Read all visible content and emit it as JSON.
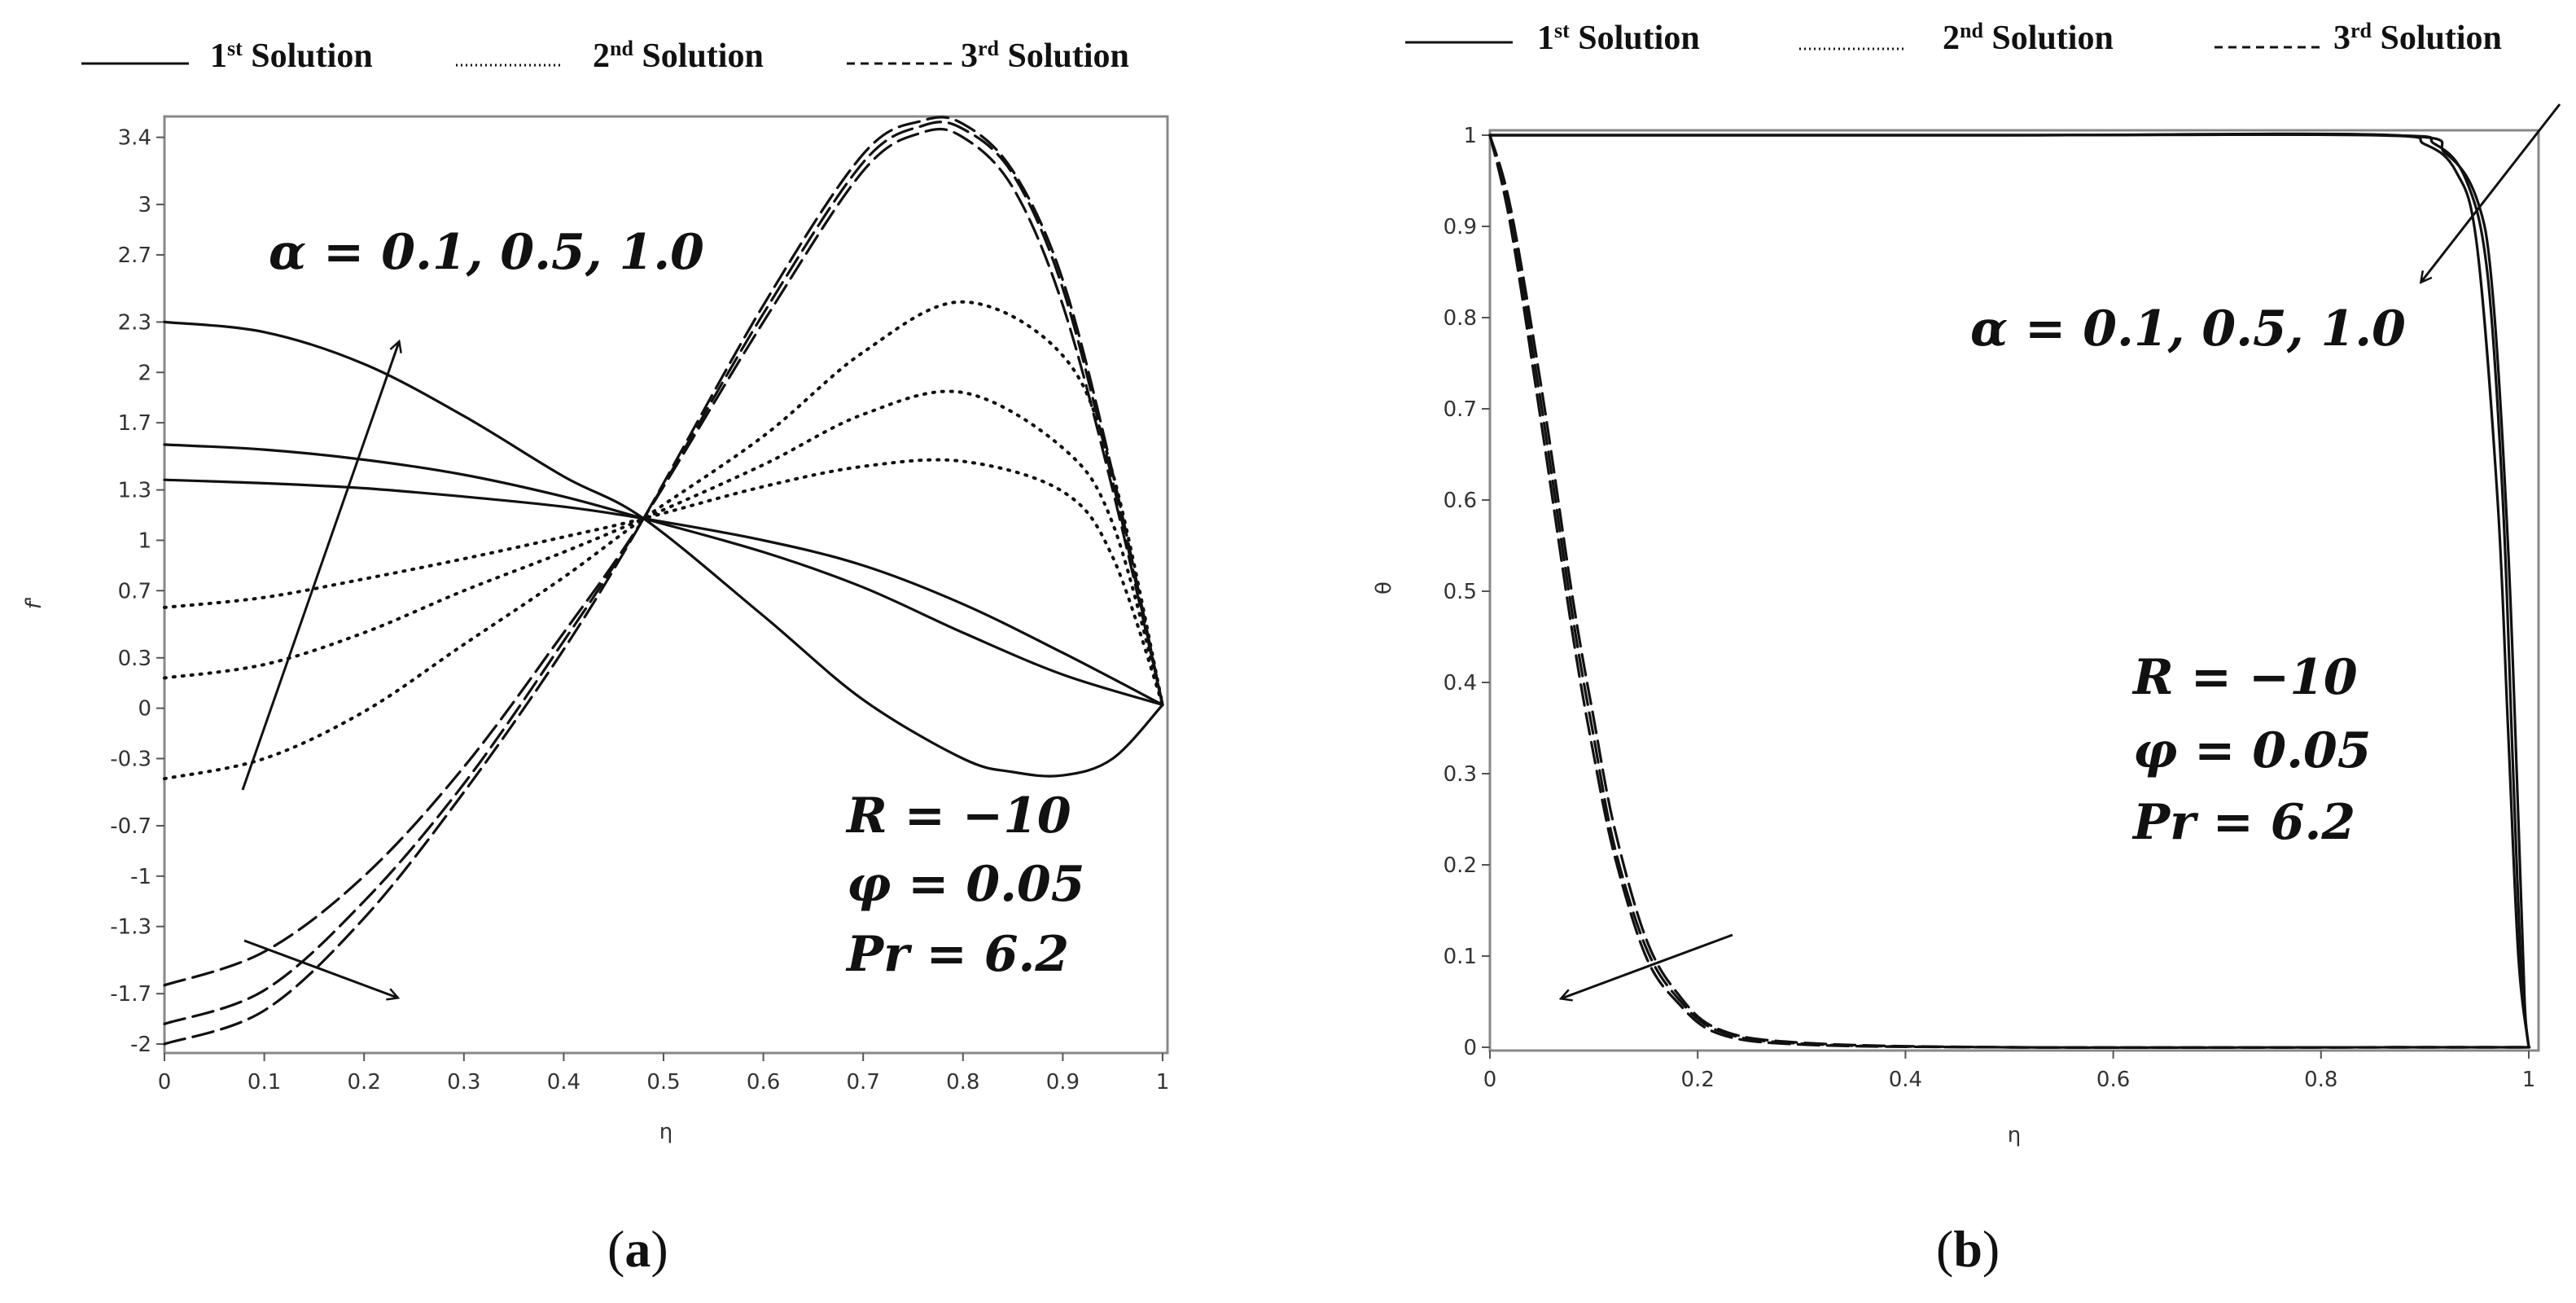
{
  "chart_data": [
    {
      "type": "line",
      "panel": "a",
      "caption_letter": "a",
      "caption_open": "(",
      "caption_close": ")",
      "xlabel": "η",
      "ylabel": "f'",
      "xlim": [
        0,
        1
      ],
      "ylim": [
        -2.0,
        3.5
      ],
      "x_ticks": [
        "0",
        "0.1",
        "0.2",
        "0.3",
        "0.4",
        "0.5",
        "0.6",
        "0.7",
        "0.8",
        "0.9",
        "1"
      ],
      "y_ticks": [
        {
          "v": 3.4,
          "label": "3.4"
        },
        {
          "v": 3.0,
          "label": "3"
        },
        {
          "v": 2.7,
          "label": "2.7"
        },
        {
          "v": 2.3,
          "label": "2.3"
        },
        {
          "v": 2.0,
          "label": "2"
        },
        {
          "v": 1.7,
          "label": "1.7"
        },
        {
          "v": 1.3,
          "label": "1.3"
        },
        {
          "v": 1.0,
          "label": "1"
        },
        {
          "v": 0.7,
          "label": "0.7"
        },
        {
          "v": 0.3,
          "label": "0.3"
        },
        {
          "v": 0.0,
          "label": "0"
        },
        {
          "v": -0.3,
          "label": "-0.3"
        },
        {
          "v": -0.7,
          "label": "-0.7"
        },
        {
          "v": -1.0,
          "label": "-1"
        },
        {
          "v": -1.3,
          "label": "-1.3"
        },
        {
          "v": -1.7,
          "label": "-1.7"
        },
        {
          "v": -2.0,
          "label": "-2"
        }
      ],
      "legend": [
        {
          "pre": "1",
          "sup": "st",
          "post": " Solution",
          "style": "solid"
        },
        {
          "pre": "2",
          "sup": "nd",
          "post": " Solution",
          "style": "dotted"
        },
        {
          "pre": "3",
          "sup": "rd",
          "post": " Solution",
          "style": "dashed"
        }
      ],
      "series": [
        {
          "name": "1st Solution, α = 0.1",
          "style": "solid",
          "x": [
            0,
            0.1,
            0.2,
            0.3,
            0.4,
            0.48,
            0.6,
            0.7,
            0.8,
            0.9,
            1.0
          ],
          "y": [
            1.36,
            1.34,
            1.31,
            1.26,
            1.2,
            1.13,
            1.0,
            0.85,
            0.62,
            0.33,
            0.02
          ]
        },
        {
          "name": "1st Solution, α = 0.5",
          "style": "solid",
          "x": [
            0,
            0.1,
            0.2,
            0.3,
            0.4,
            0.48,
            0.6,
            0.7,
            0.8,
            0.9,
            1.0
          ],
          "y": [
            1.57,
            1.54,
            1.48,
            1.39,
            1.26,
            1.13,
            0.93,
            0.72,
            0.45,
            0.2,
            0.02
          ]
        },
        {
          "name": "1st Solution, α = 1.0",
          "style": "solid",
          "x": [
            0,
            0.1,
            0.2,
            0.3,
            0.4,
            0.48,
            0.6,
            0.7,
            0.8,
            0.85,
            0.9,
            0.95,
            1.0
          ],
          "y": [
            2.3,
            2.24,
            2.05,
            1.74,
            1.38,
            1.13,
            0.55,
            0.05,
            -0.3,
            -0.38,
            -0.4,
            -0.3,
            0.02
          ]
        },
        {
          "name": "2nd Solution, α = 0.1",
          "style": "dotted",
          "x": [
            0,
            0.1,
            0.2,
            0.3,
            0.4,
            0.48,
            0.6,
            0.7,
            0.8,
            0.9,
            0.95,
            1.0
          ],
          "y": [
            0.6,
            0.66,
            0.77,
            0.89,
            1.02,
            1.13,
            1.32,
            1.44,
            1.47,
            1.29,
            0.9,
            0.02
          ]
        },
        {
          "name": "2nd Solution, α = 0.5",
          "style": "dotted",
          "x": [
            0,
            0.1,
            0.2,
            0.3,
            0.4,
            0.48,
            0.6,
            0.7,
            0.8,
            0.9,
            0.95,
            1.0
          ],
          "y": [
            0.18,
            0.26,
            0.45,
            0.7,
            0.93,
            1.13,
            1.45,
            1.75,
            1.88,
            1.55,
            1.1,
            0.02
          ]
        },
        {
          "name": "2nd Solution, α = 1.0",
          "style": "dotted",
          "x": [
            0,
            0.1,
            0.2,
            0.3,
            0.4,
            0.48,
            0.6,
            0.7,
            0.8,
            0.9,
            0.95,
            1.0
          ],
          "y": [
            -0.42,
            -0.3,
            -0.02,
            0.38,
            0.78,
            1.13,
            1.62,
            2.12,
            2.42,
            2.1,
            1.4,
            0.02
          ]
        },
        {
          "name": "3rd Solution, α = 0.1",
          "style": "dashed",
          "x": [
            0,
            0.1,
            0.2,
            0.3,
            0.4,
            0.48,
            0.6,
            0.7,
            0.76,
            0.8,
            0.85,
            0.9,
            0.95,
            1.0
          ],
          "y": [
            -1.65,
            -1.45,
            -1.0,
            -0.35,
            0.45,
            1.13,
            2.3,
            3.2,
            3.43,
            3.4,
            3.1,
            2.4,
            1.3,
            0.02
          ]
        },
        {
          "name": "3rd Solution, α = 0.5",
          "style": "dashed",
          "x": [
            0,
            0.1,
            0.2,
            0.3,
            0.4,
            0.48,
            0.6,
            0.7,
            0.76,
            0.8,
            0.85,
            0.9,
            0.95,
            1.0
          ],
          "y": [
            -1.88,
            -1.68,
            -1.15,
            -0.45,
            0.4,
            1.13,
            2.35,
            3.25,
            3.47,
            3.45,
            3.18,
            2.5,
            1.35,
            0.02
          ]
        },
        {
          "name": "3rd Solution, α = 1.0",
          "style": "dashed",
          "x": [
            0,
            0.1,
            0.2,
            0.3,
            0.4,
            0.48,
            0.6,
            0.7,
            0.76,
            0.8,
            0.85,
            0.9,
            0.95,
            1.0
          ],
          "y": [
            -2.0,
            -1.8,
            -1.25,
            -0.5,
            0.35,
            1.13,
            2.4,
            3.3,
            3.5,
            3.48,
            3.2,
            2.55,
            1.4,
            0.02
          ]
        }
      ],
      "annotations": {
        "alpha": "α = 0.1, 0.5, 1.0",
        "params": [
          "R = −10",
          "φ = 0.05",
          "Pr = 6.2"
        ]
      }
    },
    {
      "type": "line",
      "panel": "b",
      "caption_letter": "b",
      "caption_open": "(",
      "caption_close": ")",
      "xlabel": "η",
      "ylabel": "θ",
      "xlim": [
        0,
        1
      ],
      "ylim": [
        0,
        1
      ],
      "x_ticks": [
        "0",
        "0.2",
        "0.4",
        "0.6",
        "0.8",
        "1"
      ],
      "y_ticks": [
        {
          "v": 1.0,
          "label": "1"
        },
        {
          "v": 0.9,
          "label": "0.9"
        },
        {
          "v": 0.8,
          "label": "0.8"
        },
        {
          "v": 0.7,
          "label": "0.7"
        },
        {
          "v": 0.6,
          "label": "0.6"
        },
        {
          "v": 0.5,
          "label": "0.5"
        },
        {
          "v": 0.4,
          "label": "0.4"
        },
        {
          "v": 0.3,
          "label": "0.3"
        },
        {
          "v": 0.2,
          "label": "0.2"
        },
        {
          "v": 0.1,
          "label": "0.1"
        },
        {
          "v": 0.0,
          "label": "0"
        }
      ],
      "legend": [
        {
          "pre": "1",
          "sup": "st",
          "post": " Solution",
          "style": "solid"
        },
        {
          "pre": "2",
          "sup": "nd",
          "post": " Solution",
          "style": "dotted"
        },
        {
          "pre": "3",
          "sup": "rd",
          "post": " Solution",
          "style": "dashed"
        }
      ],
      "series": [
        {
          "name": "1st/2nd Solution, α = 0.1",
          "style": "solid",
          "x": [
            0,
            0.5,
            0.85,
            0.9,
            0.93,
            0.95,
            0.97,
            0.98,
            0.99,
            1.0
          ],
          "y": [
            1.0,
            1.0,
            1.0,
            0.99,
            0.96,
            0.88,
            0.6,
            0.35,
            0.1,
            0.0
          ]
        },
        {
          "name": "1st/2nd Solution, α = 0.5",
          "style": "solid",
          "x": [
            0,
            0.5,
            0.86,
            0.91,
            0.94,
            0.96,
            0.975,
            0.985,
            0.993,
            1.0
          ],
          "y": [
            1.0,
            1.0,
            1.0,
            0.99,
            0.95,
            0.85,
            0.6,
            0.3,
            0.08,
            0.0
          ]
        },
        {
          "name": "1st/2nd Solution, α = 1.0",
          "style": "solid",
          "x": [
            0,
            0.5,
            0.87,
            0.92,
            0.95,
            0.965,
            0.98,
            0.99,
            0.996,
            1.0
          ],
          "y": [
            1.0,
            1.0,
            1.0,
            0.98,
            0.93,
            0.83,
            0.55,
            0.25,
            0.05,
            0.0
          ]
        },
        {
          "name": "3rd Solution, α = 0.1",
          "style": "dashed",
          "x": [
            0,
            0.02,
            0.05,
            0.08,
            0.1,
            0.12,
            0.15,
            0.18,
            0.22,
            0.3,
            0.5,
            0.9,
            0.99,
            1.0
          ],
          "y": [
            1.0,
            0.9,
            0.68,
            0.45,
            0.32,
            0.21,
            0.1,
            0.05,
            0.015,
            0.003,
            0.0,
            0.0,
            0.0,
            0.0
          ]
        },
        {
          "name": "3rd Solution, α = 0.5",
          "style": "dashed",
          "x": [
            0,
            0.02,
            0.05,
            0.08,
            0.1,
            0.12,
            0.15,
            0.18,
            0.22,
            0.3,
            0.5,
            0.9,
            0.99,
            1.0
          ],
          "y": [
            1.0,
            0.91,
            0.7,
            0.47,
            0.34,
            0.22,
            0.11,
            0.055,
            0.018,
            0.004,
            0.0,
            0.0,
            0.0,
            0.0
          ]
        },
        {
          "name": "3rd Solution, α = 1.0",
          "style": "dashed",
          "x": [
            0,
            0.02,
            0.05,
            0.08,
            0.1,
            0.12,
            0.15,
            0.18,
            0.22,
            0.3,
            0.5,
            0.9,
            0.99,
            1.0
          ],
          "y": [
            1.0,
            0.92,
            0.72,
            0.49,
            0.36,
            0.24,
            0.12,
            0.06,
            0.02,
            0.005,
            0.0,
            0.0,
            0.0,
            0.0
          ]
        }
      ],
      "annotations": {
        "alpha": "α = 0.1, 0.5, 1.0",
        "params": [
          "R = −10",
          "φ = 0.05",
          "Pr = 6.2"
        ]
      }
    }
  ]
}
